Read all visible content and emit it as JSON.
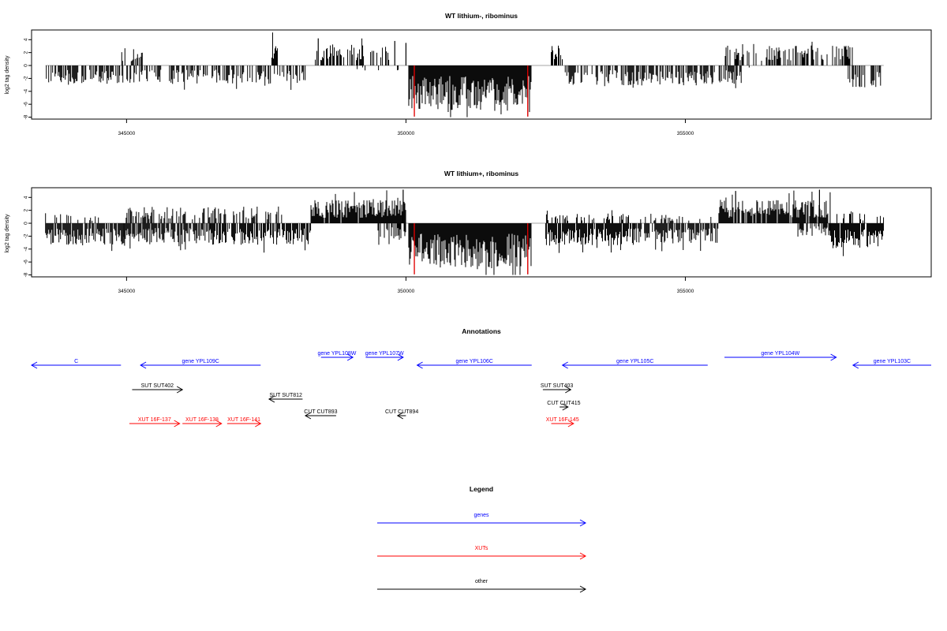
{
  "chart_data": [
    {
      "type": "bar",
      "title": "WT lithium-, ribominus",
      "ylabel": "log2 tag density",
      "xlim": [
        343300,
        359400
      ],
      "ylim": [
        -8.3,
        5.5
      ],
      "xticks": [
        345000,
        350000,
        355000
      ],
      "yticks": [
        -8,
        -6,
        -4,
        -2,
        0,
        2,
        4
      ],
      "baseline_range": [
        343550,
        358550
      ],
      "series": [
        {
          "color": "#000000",
          "segments": [
            {
              "from": 343550,
              "to": 348200,
              "sign": -1,
              "amp": 2.2,
              "density": 0.55
            },
            {
              "from": 344900,
              "to": 345300,
              "sign": 1,
              "amp": 2.2,
              "density": 0.5
            },
            {
              "from": 347600,
              "to": 347700,
              "sign": 1,
              "amp": 3.0,
              "density": 0.6
            },
            {
              "from": 348350,
              "to": 349700,
              "sign": 1,
              "amp": 2.6,
              "density": 0.55
            },
            {
              "from": 349000,
              "to": 350000,
              "sign": -1,
              "amp": 0.6,
              "density": 0.1
            },
            {
              "from": 350050,
              "to": 352250,
              "sign": -1,
              "amp": 5.4,
              "density": 1.0
            },
            {
              "from": 352600,
              "to": 352800,
              "sign": 1,
              "amp": 2.4,
              "density": 0.5
            },
            {
              "from": 352850,
              "to": 356000,
              "sign": -1,
              "amp": 2.4,
              "density": 0.6
            },
            {
              "from": 355700,
              "to": 358000,
              "sign": 1,
              "amp": 2.4,
              "density": 0.5
            },
            {
              "from": 356100,
              "to": 356500,
              "sign": -1,
              "amp": 0.8,
              "density": 0.1
            },
            {
              "from": 357900,
              "to": 358500,
              "sign": -1,
              "amp": 2.6,
              "density": 0.6
            }
          ],
          "spikes": [
            {
              "x": 348430,
              "y": 4.2
            },
            {
              "x": 349800,
              "y": 3.8
            },
            {
              "x": 350000,
              "y": 3.5
            },
            {
              "x": 350150,
              "y": -7.9
            },
            {
              "x": 352180,
              "y": -7.9
            }
          ]
        },
        {
          "color": "#ff0000",
          "spikes": [
            {
              "x": 350150,
              "y": -7.9
            },
            {
              "x": 352180,
              "y": -7.9
            }
          ]
        }
      ]
    },
    {
      "type": "bar",
      "title": "WT lithium+, ribominus",
      "ylabel": "log2 tag density",
      "xlim": [
        343300,
        359400
      ],
      "ylim": [
        -8.3,
        5.5
      ],
      "xticks": [
        345000,
        350000,
        355000
      ],
      "yticks": [
        -8,
        -6,
        -4,
        -2,
        0,
        2,
        4
      ],
      "baseline_range": [
        343550,
        358550
      ],
      "series": [
        {
          "color": "#000000",
          "segments": [
            {
              "from": 343550,
              "to": 344950,
              "sign": -1,
              "amp": 2.6,
              "density": 0.9
            },
            {
              "from": 343550,
              "to": 344500,
              "sign": 1,
              "amp": 1.2,
              "density": 0.25
            },
            {
              "from": 344950,
              "to": 346500,
              "sign": -1,
              "amp": 2.4,
              "density": 0.8
            },
            {
              "from": 344950,
              "to": 347800,
              "sign": 1,
              "amp": 2.0,
              "density": 0.45
            },
            {
              "from": 346500,
              "to": 348300,
              "sign": -1,
              "amp": 2.6,
              "density": 0.8
            },
            {
              "from": 348300,
              "to": 350000,
              "sign": 1,
              "amp": 2.8,
              "density": 0.95
            },
            {
              "from": 349500,
              "to": 350000,
              "sign": -1,
              "amp": 2.0,
              "density": 0.6
            },
            {
              "from": 350050,
              "to": 352250,
              "sign": -1,
              "amp": 5.4,
              "density": 1.0
            },
            {
              "from": 352500,
              "to": 354100,
              "sign": -1,
              "amp": 2.6,
              "density": 0.9
            },
            {
              "from": 352500,
              "to": 354000,
              "sign": 1,
              "amp": 1.2,
              "density": 0.3
            },
            {
              "from": 354100,
              "to": 355600,
              "sign": -1,
              "amp": 2.4,
              "density": 0.8
            },
            {
              "from": 354200,
              "to": 355500,
              "sign": 1,
              "amp": 1.0,
              "density": 0.2
            },
            {
              "from": 355600,
              "to": 357600,
              "sign": 1,
              "amp": 2.8,
              "density": 0.9
            },
            {
              "from": 357000,
              "to": 357600,
              "sign": -1,
              "amp": 1.6,
              "density": 0.5
            },
            {
              "from": 357600,
              "to": 358550,
              "sign": -1,
              "amp": 3.0,
              "density": 0.95
            },
            {
              "from": 357600,
              "to": 358550,
              "sign": 1,
              "amp": 1.2,
              "density": 0.3
            }
          ],
          "spikes": [
            {
              "x": 349950,
              "y": 5.2
            },
            {
              "x": 355900,
              "y": 5.0
            },
            {
              "x": 357400,
              "y": 5.2
            },
            {
              "x": 350150,
              "y": -7.9
            },
            {
              "x": 352180,
              "y": -7.9
            }
          ]
        },
        {
          "color": "#ff0000",
          "spikes": [
            {
              "x": 350150,
              "y": -7.9
            },
            {
              "x": 352180,
              "y": -7.9
            }
          ]
        }
      ]
    }
  ],
  "annotations": {
    "title": "Annotations",
    "colors": {
      "gene": "#0000ff",
      "xut": "#ff0000",
      "other": "#000000"
    },
    "items": [
      {
        "label": "C",
        "kind": "gene",
        "row": 0,
        "x1": 343300,
        "x2": 344900,
        "dir": -1
      },
      {
        "label": "gene YPL109C",
        "kind": "gene",
        "row": 0,
        "x1": 345250,
        "x2": 347400,
        "dir": -1
      },
      {
        "label": "gene YPL108W",
        "kind": "gene",
        "row": -1,
        "x1": 348480,
        "x2": 349050,
        "dir": 1
      },
      {
        "label": "gene YPL107W",
        "kind": "gene",
        "row": -1,
        "x1": 349280,
        "x2": 349950,
        "dir": 1
      },
      {
        "label": "gene YPL106C",
        "kind": "gene",
        "row": 0,
        "x1": 350200,
        "x2": 352250,
        "dir": -1
      },
      {
        "label": "gene YPL105C",
        "kind": "gene",
        "row": 0,
        "x1": 352800,
        "x2": 355400,
        "dir": -1
      },
      {
        "label": "gene YPL104W",
        "kind": "gene",
        "row": -1,
        "x1": 355700,
        "x2": 357700,
        "dir": 1
      },
      {
        "label": "gene YPL103C",
        "kind": "gene",
        "row": 0,
        "x1": 358000,
        "x2": 359400,
        "dir": -1
      },
      {
        "label": "SUT SUT402",
        "kind": "other",
        "row": 1,
        "x1": 345100,
        "x2": 346000,
        "dir": 1
      },
      {
        "label": "SUT SUT812",
        "kind": "other",
        "row": 2,
        "x1": 347550,
        "x2": 348150,
        "dir": -1
      },
      {
        "label": "SUT SUT403",
        "kind": "other",
        "row": 1,
        "x1": 352450,
        "x2": 352950,
        "dir": 1
      },
      {
        "label": "CUT CUT893",
        "kind": "other",
        "row": 3,
        "x1": 348200,
        "x2": 348750,
        "dir": -1
      },
      {
        "label": "CUT CUT894",
        "kind": "other",
        "row": 3,
        "x1": 349850,
        "x2": 350000,
        "dir": -1
      },
      {
        "label": "CUT CUT415",
        "kind": "other",
        "row": 2.5,
        "x1": 352750,
        "x2": 352900,
        "dir": 1
      },
      {
        "label": "XUT 16F-137",
        "kind": "xut",
        "row": 4,
        "x1": 345050,
        "x2": 345950,
        "dir": 1
      },
      {
        "label": "XUT 16F-138",
        "kind": "xut",
        "row": 4,
        "x1": 346000,
        "x2": 346700,
        "dir": 1
      },
      {
        "label": "XUT 16F-141",
        "kind": "xut",
        "row": 4,
        "x1": 346800,
        "x2": 347400,
        "dir": 1
      },
      {
        "label": "XUT 16F-145",
        "kind": "xut",
        "row": 4,
        "x1": 352600,
        "x2": 353000,
        "dir": 1
      }
    ]
  },
  "legend": {
    "title": "Legend",
    "entries": [
      {
        "label": "genes",
        "kind": "gene"
      },
      {
        "label": "XUTs",
        "kind": "xut"
      },
      {
        "label": "other",
        "kind": "other"
      }
    ]
  }
}
